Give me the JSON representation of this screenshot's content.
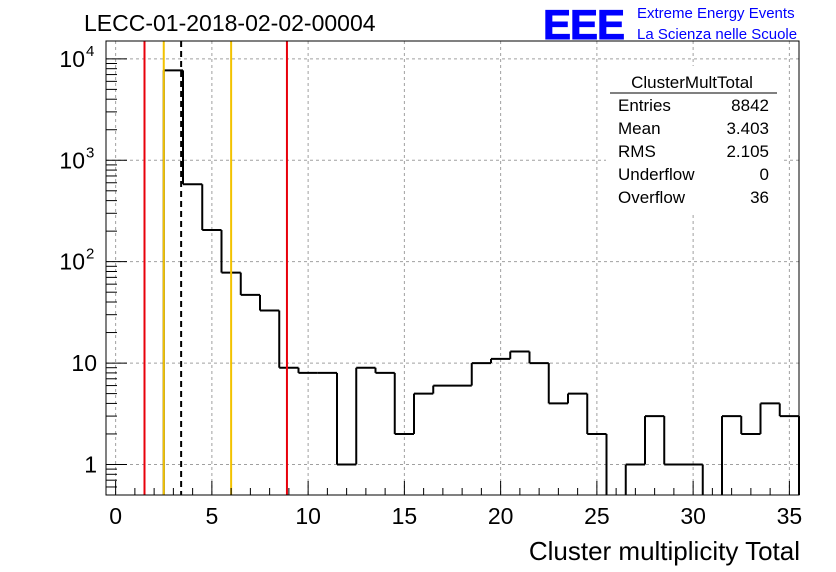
{
  "title": "LECC-01-2018-02-02-00004",
  "logo": {
    "letters": "EEE",
    "line1": "Extreme Energy Events",
    "line2": "La Scienza nelle Scuole",
    "color": "#0000ff"
  },
  "stats": {
    "name": "ClusterMultTotal",
    "rows": [
      {
        "label": "Entries",
        "value": "8842"
      },
      {
        "label": "Mean",
        "value": "3.403"
      },
      {
        "label": "RMS",
        "value": "2.105"
      },
      {
        "label": "Underflow",
        "value": "0"
      },
      {
        "label": "Overflow",
        "value": "36"
      }
    ]
  },
  "chart_data": {
    "type": "histogram",
    "xlabel": "Cluster multiplicity Total",
    "ylabel": "",
    "xlim": [
      -0.5,
      35.5
    ],
    "ylim": [
      0.5,
      15000
    ],
    "yscale": "log",
    "grid": true,
    "xticks": [
      "0",
      "5",
      "10",
      "15",
      "20",
      "25",
      "30",
      "35"
    ],
    "yticks": [
      {
        "value": 1,
        "base": "1",
        "exp": ""
      },
      {
        "value": 10,
        "base": "10",
        "exp": ""
      },
      {
        "value": 100,
        "base": "10",
        "exp": "2"
      },
      {
        "value": 1000,
        "base": "10",
        "exp": "3"
      },
      {
        "value": 10000,
        "base": "10",
        "exp": "4"
      }
    ],
    "bin_width": 1,
    "bins": [
      {
        "x": 0,
        "count": 0
      },
      {
        "x": 1,
        "count": 0
      },
      {
        "x": 2,
        "count": 0
      },
      {
        "x": 3,
        "count": 7700
      },
      {
        "x": 4,
        "count": 580
      },
      {
        "x": 5,
        "count": 205
      },
      {
        "x": 6,
        "count": 78
      },
      {
        "x": 7,
        "count": 47
      },
      {
        "x": 8,
        "count": 33
      },
      {
        "x": 9,
        "count": 9
      },
      {
        "x": 10,
        "count": 8
      },
      {
        "x": 11,
        "count": 8
      },
      {
        "x": 12,
        "count": 1
      },
      {
        "x": 13,
        "count": 9
      },
      {
        "x": 14,
        "count": 8
      },
      {
        "x": 15,
        "count": 2
      },
      {
        "x": 16,
        "count": 5
      },
      {
        "x": 17,
        "count": 6
      },
      {
        "x": 18,
        "count": 6
      },
      {
        "x": 19,
        "count": 10
      },
      {
        "x": 20,
        "count": 11
      },
      {
        "x": 21,
        "count": 13
      },
      {
        "x": 22,
        "count": 10
      },
      {
        "x": 23,
        "count": 4
      },
      {
        "x": 24,
        "count": 5
      },
      {
        "x": 25,
        "count": 2
      },
      {
        "x": 26,
        "count": 0
      },
      {
        "x": 27,
        "count": 1
      },
      {
        "x": 28,
        "count": 3
      },
      {
        "x": 29,
        "count": 1
      },
      {
        "x": 30,
        "count": 1
      },
      {
        "x": 31,
        "count": 0
      },
      {
        "x": 32,
        "count": 3
      },
      {
        "x": 33,
        "count": 2
      },
      {
        "x": 34,
        "count": 4
      },
      {
        "x": 35,
        "count": 3
      }
    ],
    "vlines": [
      {
        "x": 1.5,
        "color": "#e8000b",
        "style": "solid"
      },
      {
        "x": 2.5,
        "color": "#f2c200",
        "style": "solid"
      },
      {
        "x": 3.403,
        "color": "#000000",
        "style": "dashed"
      },
      {
        "x": 6.0,
        "color": "#f2c200",
        "style": "solid"
      },
      {
        "x": 8.9,
        "color": "#e8000b",
        "style": "solid"
      }
    ]
  }
}
